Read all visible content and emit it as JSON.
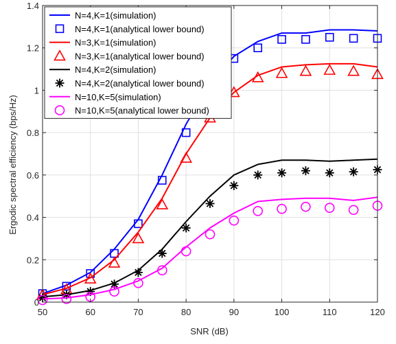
{
  "chart_data": {
    "type": "line",
    "title": "",
    "xlabel": "SNR (dB)",
    "ylabel": "Ergodic spectral efficiency (bps/Hz)",
    "xlim": [
      50,
      120
    ],
    "ylim": [
      0,
      1.4
    ],
    "xticks": [
      "50",
      "60",
      "70",
      "80",
      "90",
      "100",
      "110",
      "120"
    ],
    "yticks": [
      "0",
      "0.2",
      "0.4",
      "0.6",
      "0.8",
      "1",
      "1.2",
      "1.4"
    ],
    "grid": true,
    "legend_position": "top-left",
    "x": [
      50,
      55,
      60,
      65,
      70,
      75,
      80,
      85,
      90,
      95,
      100,
      105,
      110,
      115,
      120
    ],
    "series": [
      {
        "name": "N=4,K=1(simulation)",
        "color": "#0000ff",
        "style": "line",
        "values": [
          0.04,
          0.08,
          0.14,
          0.25,
          0.39,
          0.6,
          0.84,
          1.03,
          1.16,
          1.23,
          1.27,
          1.27,
          1.285,
          1.285,
          1.28
        ]
      },
      {
        "name": "N=4,K=1(analytical lower bound)",
        "color": "#0000ff",
        "style": "marker",
        "marker": "square",
        "values": [
          0.04,
          0.075,
          0.135,
          0.23,
          0.37,
          0.575,
          0.8,
          1.0,
          1.15,
          1.2,
          1.24,
          1.24,
          1.25,
          1.245,
          1.245
        ]
      },
      {
        "name": "N=3,K=1(simulation)",
        "color": "#ff0000",
        "style": "line",
        "values": [
          0.035,
          0.065,
          0.115,
          0.2,
          0.33,
          0.49,
          0.7,
          0.87,
          0.99,
          1.07,
          1.11,
          1.12,
          1.125,
          1.125,
          1.11
        ]
      },
      {
        "name": "N=3,K=1(analytical lower bound)",
        "color": "#ff0000",
        "style": "marker",
        "marker": "triangle",
        "values": [
          0.035,
          0.06,
          0.11,
          0.185,
          0.3,
          0.46,
          0.68,
          0.87,
          0.99,
          1.06,
          1.08,
          1.09,
          1.095,
          1.09,
          1.075
        ]
      },
      {
        "name": "N=4,K=2(simulation)",
        "color": "#000000",
        "style": "line",
        "values": [
          0.025,
          0.035,
          0.055,
          0.09,
          0.15,
          0.25,
          0.38,
          0.5,
          0.6,
          0.65,
          0.67,
          0.67,
          0.665,
          0.67,
          0.675
        ]
      },
      {
        "name": "N=4,K=2(analytical lower bound)",
        "color": "#000000",
        "style": "marker",
        "marker": "asterisk",
        "values": [
          0.02,
          0.035,
          0.05,
          0.085,
          0.14,
          0.23,
          0.35,
          0.465,
          0.55,
          0.6,
          0.61,
          0.62,
          0.61,
          0.615,
          0.625
        ]
      },
      {
        "name": "N=10,K=5(simulation)",
        "color": "#ff00ff",
        "style": "line",
        "values": [
          0.015,
          0.02,
          0.035,
          0.06,
          0.1,
          0.16,
          0.26,
          0.35,
          0.42,
          0.475,
          0.485,
          0.49,
          0.49,
          0.48,
          0.495
        ]
      },
      {
        "name": "N=10,K=5(analytical lower bound)",
        "color": "#ff00ff",
        "style": "marker",
        "marker": "circle",
        "values": [
          0.01,
          0.015,
          0.025,
          0.05,
          0.09,
          0.15,
          0.24,
          0.32,
          0.385,
          0.43,
          0.44,
          0.45,
          0.445,
          0.435,
          0.455
        ]
      }
    ]
  }
}
